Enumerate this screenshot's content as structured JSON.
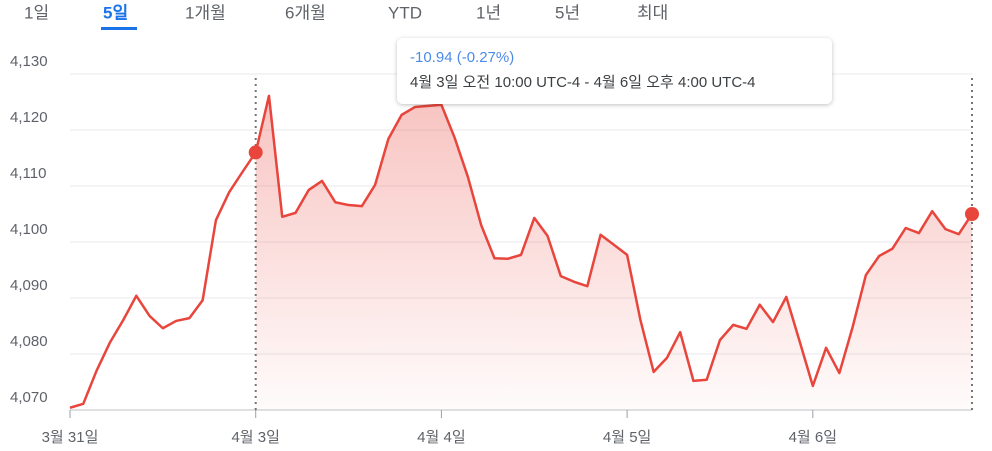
{
  "chart_data": {
    "type": "line",
    "tabs": [
      "1일",
      "5일",
      "1개월",
      "6개월",
      "YTD",
      "1년",
      "5년",
      "최대"
    ],
    "selected_tab": 1,
    "tooltip": {
      "change": "-10.94 (-0.27%)",
      "range": "4월 3일 오전 10:00 UTC-4 - 4월 6일 오후 4:00 UTC-4"
    },
    "selection": {
      "start": 14,
      "end": 68
    },
    "categories": [
      "3월 31일",
      null,
      null,
      null,
      null,
      null,
      null,
      null,
      null,
      null,
      null,
      null,
      null,
      null,
      "4월 3일",
      null,
      null,
      null,
      null,
      null,
      null,
      null,
      null,
      null,
      null,
      null,
      null,
      null,
      "4월 4일",
      null,
      null,
      null,
      null,
      null,
      null,
      null,
      null,
      null,
      null,
      null,
      null,
      null,
      "4월 5일",
      null,
      null,
      null,
      null,
      null,
      null,
      null,
      null,
      null,
      null,
      null,
      null,
      null,
      "4월 6일",
      null,
      null,
      null,
      null,
      null,
      null,
      null,
      null,
      null,
      null,
      null,
      null
    ],
    "values": [
      4070.4,
      4071.1,
      4077,
      4082,
      4086,
      4090.4,
      4086.8,
      4084.6,
      4085.9,
      4086.4,
      4089.6,
      4103.9,
      4108.9,
      4112.5,
      4116,
      4126.1,
      4104.5,
      4105.2,
      4109.3,
      4110.9,
      4107.1,
      4106.6,
      4106.4,
      4110.2,
      4118.4,
      4122.7,
      4124.1,
      4124.3,
      4124.5,
      4118.6,
      4111.6,
      4103,
      4097.1,
      4097,
      4097.7,
      4104.3,
      4101.1,
      4093.9,
      4092.9,
      4092.1,
      4101.3,
      4099.5,
      4097.7,
      4086.1,
      4076.8,
      4079.3,
      4083.9,
      4075.2,
      4075.4,
      4082.5,
      4085.2,
      4084.5,
      4088.8,
      4085.7,
      4090.2,
      4082.3,
      4074.3,
      4081.1,
      4076.6,
      4084.8,
      4094.1,
      4097.5,
      4098.8,
      4102.5,
      4101.6,
      4105.5,
      4102.3,
      4101.4,
      4105
    ],
    "color": "#e8453c",
    "ylim": [
      4070,
      4130
    ],
    "yticks": [
      {
        "value": 4070,
        "label": "4,070"
      },
      {
        "value": 4080,
        "label": "4,080"
      },
      {
        "value": 4090,
        "label": "4,090"
      },
      {
        "value": 4100,
        "label": "4,100"
      },
      {
        "value": 4110,
        "label": "4,110"
      },
      {
        "value": 4120,
        "label": "4,120"
      },
      {
        "value": 4130,
        "label": "4,130"
      }
    ],
    "grid": true
  }
}
